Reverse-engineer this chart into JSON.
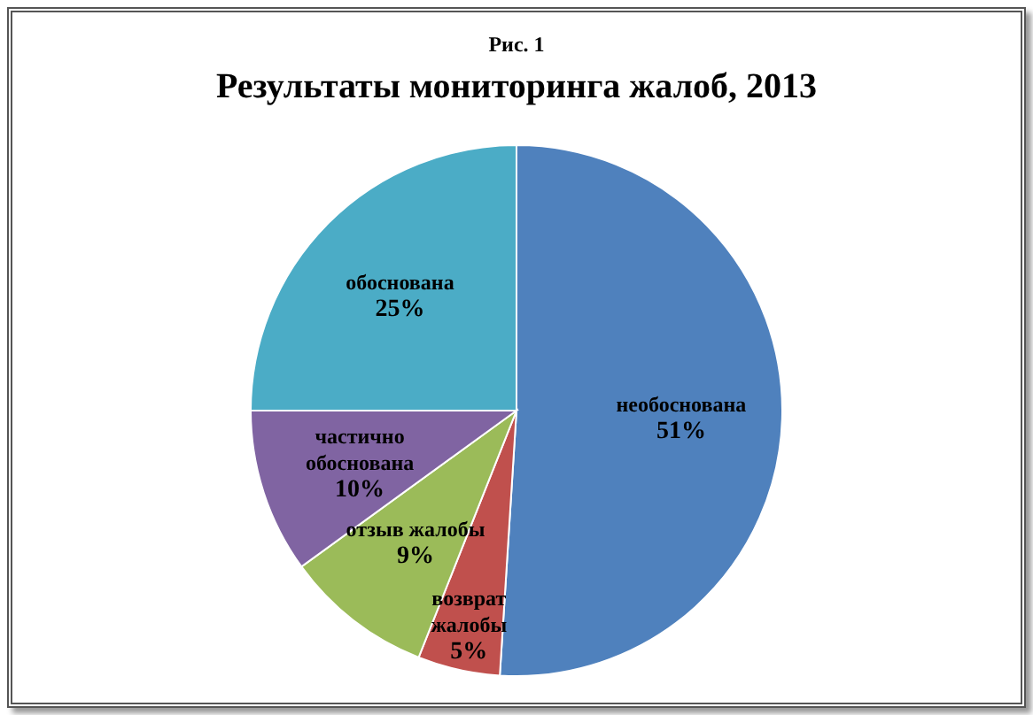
{
  "chart_data": {
    "type": "pie",
    "subtitle": "Рис. 1",
    "title": "Результаты мониторинга жалоб, 2013",
    "categories": [
      "необоснована",
      "возврат жалобы",
      "отзыв жалобы",
      "частично обоснована",
      "обоснована"
    ],
    "values": [
      51,
      5,
      9,
      10,
      25
    ],
    "value_labels": [
      "51%",
      "5%",
      "9%",
      "10%",
      "25%"
    ],
    "colors": [
      "#4f81bd",
      "#c0504d",
      "#9bbb59",
      "#8064a2",
      "#4bacc6"
    ],
    "legend": false
  }
}
